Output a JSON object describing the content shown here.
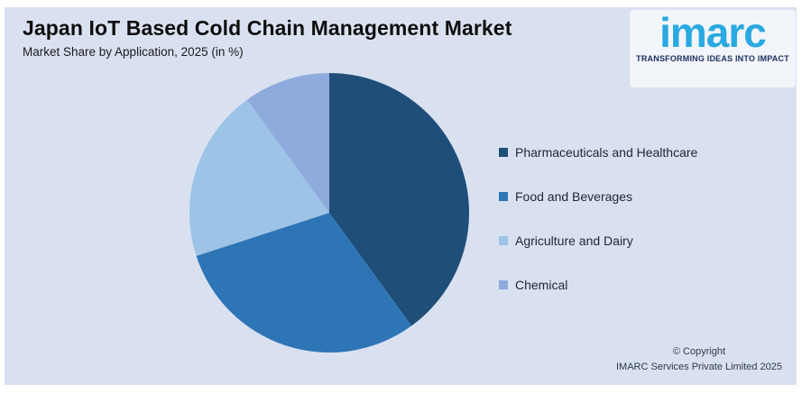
{
  "header": {
    "title": "Japan IoT Based Cold Chain Management Market",
    "subtitle": "Market Share by Application, 2025 (in %)"
  },
  "logo": {
    "brand": "imarc",
    "tagline": "TRANSFORMING IDEAS INTO IMPACT",
    "brand_color": "#29A9E1",
    "tagline_color": "#1B2F5E"
  },
  "chart_data": {
    "type": "pie",
    "title": "Japan IoT Based Cold Chain Management Market",
    "subtitle": "Market Share by Application, 2025 (in %)",
    "unit": "%",
    "labels": [
      "Pharmaceuticals and Healthcare",
      "Food and Beverages",
      "Agriculture and Dairy",
      "Chemical"
    ],
    "values": [
      40,
      30,
      20,
      10
    ],
    "colors": [
      "#1F4E79",
      "#2E75B6",
      "#9DC3E6",
      "#8FAADC"
    ],
    "start_angle_deg": 0,
    "direction": "clockwise",
    "legend_position": "right",
    "data_labels": false,
    "background": "#D9E1F1"
  },
  "legend": {
    "items": [
      {
        "label": "Pharmaceuticals and Healthcare",
        "color": "#1F4E79"
      },
      {
        "label": "Food and Beverages",
        "color": "#2E75B6"
      },
      {
        "label": "Agriculture and Dairy",
        "color": "#9DC3E6"
      },
      {
        "label": "Chemical",
        "color": "#8FAADC"
      }
    ]
  },
  "footer": {
    "line1": "© Copyright",
    "line2": "IMARC Services Private Limited 2025"
  }
}
